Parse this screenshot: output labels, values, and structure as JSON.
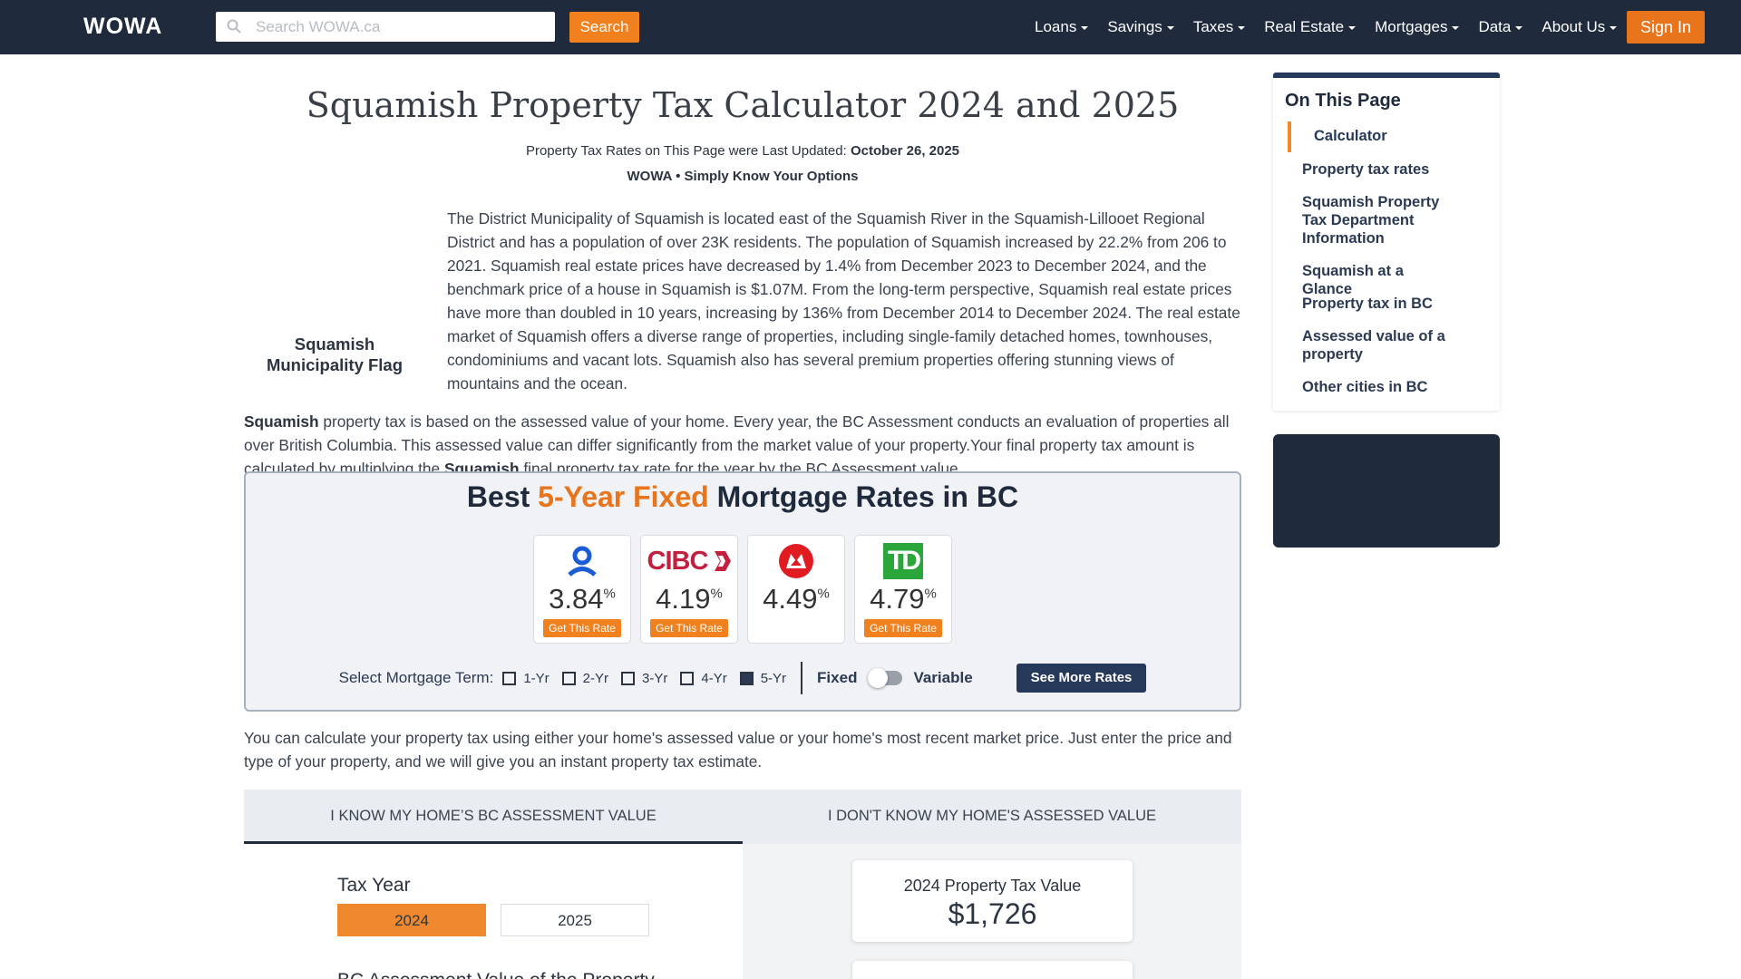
{
  "nav": {
    "logo": "WOWA",
    "search_placeholder": "Search WOWA.ca",
    "search_button": "Search",
    "menu": [
      "Loans",
      "Savings",
      "Taxes",
      "Real Estate",
      "Mortgages",
      "Data",
      "About Us"
    ],
    "sign_in": "Sign In"
  },
  "header": {
    "title": "Squamish Property Tax Calculator 2024 and 2025",
    "updated_label": "Property Tax Rates on This Page were Last Updated:",
    "updated_date": "October 26, 2025",
    "tagline": "WOWA • Simply Know Your Options"
  },
  "intro": {
    "flag_caption": "Squamish Municipality Flag",
    "paragraph_1": "The District Municipality of Squamish is located east of the Squamish River in the Squamish-Lillooet Regional District and has a population of over 23K residents. The population of Squamish increased by 22.2% from 206 to 2021. Squamish real estate prices have decreased by 1.4% from December 2023 to December 2024, and the benchmark price of a house in Squamish is $1.07M. From the long-term perspective, Squamish real estate prices have more than doubled in 10 years, increasing by 136% from December 2014 to December 2024. The real estate market of Squamish offers a diverse range of properties, including single-family detached homes, townhouses, condominiums and vacant lots. Squamish also has several premium properties offering stunning views of mountains and the ocean.",
    "paragraph_2": [
      {
        "text": "Squamish",
        "bold": true
      },
      {
        "text": " property tax is based on the assessed value of your home. Every year, the BC Assessment conducts an evaluation of properties all over British Columbia. This assessed value can differ significantly from the market value of your property.Your final property tax amount is calculated by multiplying the ",
        "bold": false
      },
      {
        "text": "Squamish",
        "bold": true
      },
      {
        "text": " final property tax rate for the year by the BC Assessment value.",
        "bold": false
      }
    ]
  },
  "rates_widget": {
    "title_start": "Best ",
    "title_highlight": "5-Year Fixed",
    "title_end": " Mortgage Rates in BC",
    "lenders": [
      {
        "rate": "3.84",
        "unit": "%",
        "button": "Get This Rate"
      },
      {
        "logo": "CIBC",
        "rate": "4.19",
        "unit": "%",
        "button": "Get This Rate"
      },
      {
        "rate": "4.49",
        "unit": "%"
      },
      {
        "logo": "TD",
        "rate": "4.79",
        "unit": "%",
        "button": "Get This Rate"
      }
    ],
    "term_label": "Select Mortgage Term:",
    "terms": [
      "1-Yr",
      "2-Yr",
      "3-Yr",
      "4-Yr",
      "5-Yr"
    ],
    "selected_term": 4,
    "fixed": "Fixed",
    "variable": "Variable",
    "more_button": "See More Rates"
  },
  "calculator": {
    "intro": "You can calculate your property tax using either your home's assessed value or your home's most recent market price. Just enter the price and type of your property, and we will give you an instant property tax estimate.",
    "tabs": [
      "I KNOW MY HOME’S BC ASSESSMENT VALUE",
      "I DON'T KNOW MY HOME'S ASSESSED VALUE"
    ],
    "active_tab": 0,
    "tax_year_label": "Tax Year",
    "years": [
      "2024",
      "2025"
    ],
    "selected_year": 0,
    "assessment_label": "BC Assessment Value of the Property",
    "result_label": "2024 Property Tax Value",
    "result_value": "$1,726"
  },
  "sidebar": {
    "title": "On This Page",
    "links": [
      "Calculator",
      "Property tax rates",
      "Squamish Property Tax Department Information",
      "Squamish at a Glance",
      "Property tax in BC",
      "Assessed value of a property",
      "Other cities in BC"
    ],
    "active_link": 0
  }
}
